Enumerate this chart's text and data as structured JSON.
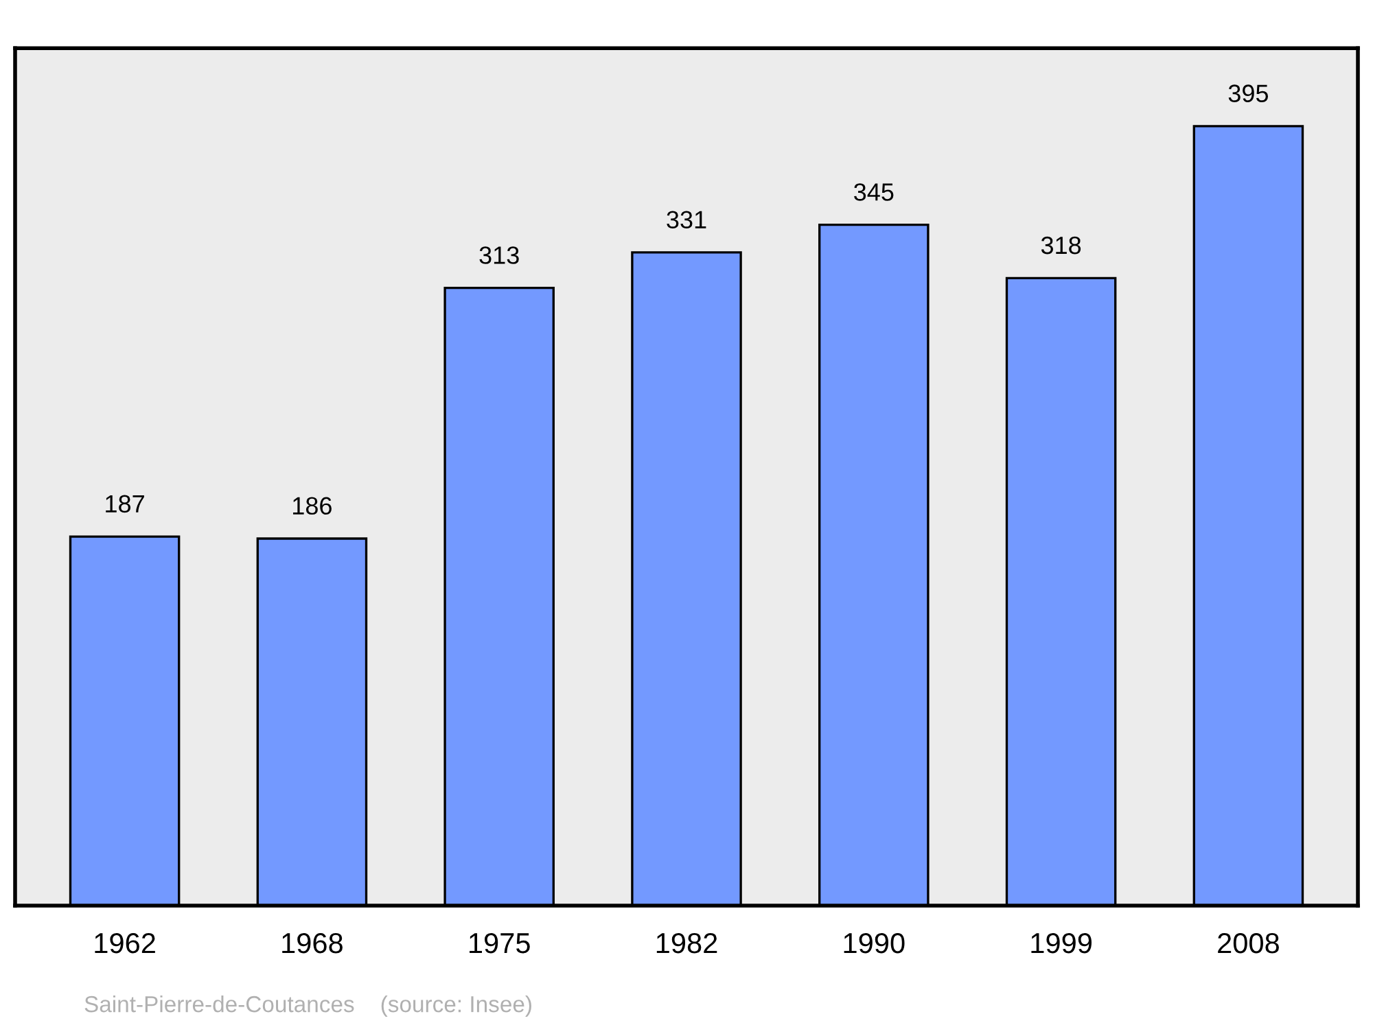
{
  "chart_data": {
    "type": "bar",
    "categories": [
      "1962",
      "1968",
      "1975",
      "1982",
      "1990",
      "1999",
      "2008"
    ],
    "values": [
      187,
      186,
      313,
      331,
      345,
      318,
      395
    ],
    "color": "#7399ff",
    "data_labels": true,
    "grid": false,
    "legend": false,
    "annotations": [
      "Saint-Pierre-de-Coutances    (source: Insee)"
    ]
  }
}
